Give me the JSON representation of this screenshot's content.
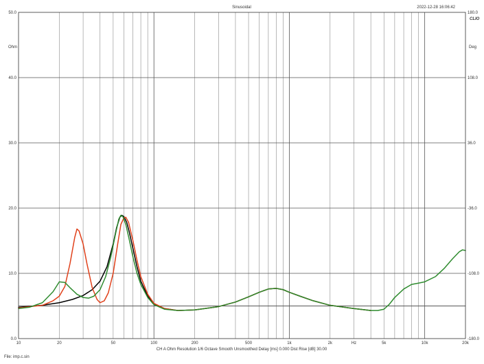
{
  "header": {
    "title": "Sinusoidal",
    "timestamp": "2022-12-28 16:06:42",
    "brand": "CLIO"
  },
  "footer": {
    "settings": "CH A   Ohm   Resolution 1/6 Octave   Smooth Unsmoothed   Delay [ms] 0.000   Dist Rise [dB] 30.00",
    "file": "File: imp.c.sin"
  },
  "chart_data": {
    "type": "line",
    "x_scale": "log",
    "xlim": [
      10,
      20000
    ],
    "ylim": [
      0,
      50
    ],
    "y2lim": [
      -180,
      180
    ],
    "grid": true,
    "ylabel": "Ohm",
    "y2label": "Deg",
    "x_ticks": [
      {
        "value": 10,
        "label": "10"
      },
      {
        "value": 20,
        "label": "20"
      },
      {
        "value": 50,
        "label": "50"
      },
      {
        "value": 100,
        "label": "100"
      },
      {
        "value": 200,
        "label": "200"
      },
      {
        "value": 500,
        "label": "500"
      },
      {
        "value": 1000,
        "label": "1k"
      },
      {
        "value": 2000,
        "label": "2k"
      },
      {
        "value": 3000,
        "label": "Hz"
      },
      {
        "value": 5000,
        "label": "5k"
      },
      {
        "value": 10000,
        "label": "10k"
      },
      {
        "value": 20000,
        "label": "20k"
      }
    ],
    "y_ticks": [
      {
        "value": 0,
        "label": "0.0"
      },
      {
        "value": 10,
        "label": "10.0"
      },
      {
        "value": 20,
        "label": "20.0"
      },
      {
        "value": 30,
        "label": "30.0"
      },
      {
        "value": 40,
        "label": "40.0"
      },
      {
        "value": 50,
        "label": "50.0"
      }
    ],
    "y2_ticks": [
      {
        "value": -180,
        "label": "-180.0"
      },
      {
        "value": -108,
        "label": "-108.0"
      },
      {
        "value": -36,
        "label": "-36.0"
      },
      {
        "value": 36,
        "label": "36.0"
      },
      {
        "value": 108,
        "label": "108.0"
      },
      {
        "value": 180,
        "label": "180.0"
      }
    ],
    "hlines": [
      {
        "y": 5.0,
        "color": "#555555"
      }
    ],
    "series": [
      {
        "color": "#000000",
        "points": [
          [
            10,
            4.8
          ],
          [
            15,
            5.1
          ],
          [
            20,
            5.5
          ],
          [
            25,
            6.0
          ],
          [
            30,
            6.6
          ],
          [
            35,
            7.5
          ],
          [
            40,
            8.8
          ],
          [
            45,
            11.0
          ],
          [
            50,
            14.5
          ],
          [
            53,
            17.0
          ],
          [
            56,
            18.6
          ],
          [
            58,
            18.9
          ],
          [
            60,
            18.7
          ],
          [
            63,
            17.8
          ],
          [
            66,
            16.2
          ],
          [
            70,
            13.8
          ],
          [
            75,
            11.0
          ],
          [
            80,
            8.8
          ],
          [
            90,
            6.5
          ],
          [
            100,
            5.3
          ],
          [
            120,
            4.6
          ],
          [
            150,
            4.3
          ],
          [
            200,
            4.4
          ],
          [
            300,
            4.9
          ],
          [
            400,
            5.6
          ],
          [
            500,
            6.4
          ],
          [
            600,
            7.1
          ],
          [
            700,
            7.6
          ],
          [
            800,
            7.7
          ],
          [
            900,
            7.5
          ],
          [
            1000,
            7.1
          ],
          [
            1200,
            6.5
          ],
          [
            1500,
            5.8
          ],
          [
            2000,
            5.1
          ],
          [
            3000,
            4.6
          ],
          [
            4000,
            4.3
          ]
        ]
      },
      {
        "color": "#e0401a",
        "points": [
          [
            10,
            4.7
          ],
          [
            15,
            5.1
          ],
          [
            18,
            5.8
          ],
          [
            20,
            6.5
          ],
          [
            22,
            8.0
          ],
          [
            24,
            11.5
          ],
          [
            26,
            15.5
          ],
          [
            27,
            16.8
          ],
          [
            28,
            16.5
          ],
          [
            30,
            14.5
          ],
          [
            32,
            11.5
          ],
          [
            35,
            7.8
          ],
          [
            38,
            6.0
          ],
          [
            40,
            5.5
          ],
          [
            43,
            5.8
          ],
          [
            46,
            7.0
          ],
          [
            50,
            10.0
          ],
          [
            54,
            14.5
          ],
          [
            57,
            17.5
          ],
          [
            60,
            18.5
          ],
          [
            62,
            18.6
          ],
          [
            65,
            17.8
          ],
          [
            70,
            15.0
          ],
          [
            75,
            12.0
          ],
          [
            80,
            9.5
          ],
          [
            90,
            6.8
          ],
          [
            100,
            5.4
          ],
          [
            120,
            4.6
          ],
          [
            150,
            4.3
          ],
          [
            200,
            4.4
          ],
          [
            300,
            4.9
          ],
          [
            400,
            5.6
          ],
          [
            500,
            6.4
          ],
          [
            600,
            7.1
          ],
          [
            700,
            7.6
          ],
          [
            800,
            7.7
          ],
          [
            900,
            7.5
          ],
          [
            1000,
            7.1
          ],
          [
            1200,
            6.5
          ],
          [
            1500,
            5.8
          ],
          [
            2000,
            5.1
          ],
          [
            3000,
            4.6
          ],
          [
            4000,
            4.3
          ]
        ]
      },
      {
        "color": "#2e8b2e",
        "points": [
          [
            10,
            4.6
          ],
          [
            12,
            4.8
          ],
          [
            15,
            5.5
          ],
          [
            18,
            7.2
          ],
          [
            20,
            8.7
          ],
          [
            22,
            8.6
          ],
          [
            24,
            7.8
          ],
          [
            27,
            6.8
          ],
          [
            30,
            6.3
          ],
          [
            33,
            6.2
          ],
          [
            36,
            6.5
          ],
          [
            40,
            7.5
          ],
          [
            44,
            9.5
          ],
          [
            48,
            12.5
          ],
          [
            52,
            16.0
          ],
          [
            55,
            18.3
          ],
          [
            57,
            18.9
          ],
          [
            59,
            18.7
          ],
          [
            62,
            17.5
          ],
          [
            66,
            15.0
          ],
          [
            70,
            12.5
          ],
          [
            75,
            10.0
          ],
          [
            80,
            8.3
          ],
          [
            90,
            6.3
          ],
          [
            100,
            5.2
          ],
          [
            120,
            4.5
          ],
          [
            150,
            4.3
          ],
          [
            200,
            4.4
          ],
          [
            300,
            4.9
          ],
          [
            400,
            5.6
          ],
          [
            500,
            6.4
          ],
          [
            600,
            7.1
          ],
          [
            700,
            7.6
          ],
          [
            800,
            7.7
          ],
          [
            900,
            7.5
          ],
          [
            1000,
            7.1
          ],
          [
            1200,
            6.5
          ],
          [
            1500,
            5.8
          ],
          [
            2000,
            5.1
          ],
          [
            3000,
            4.6
          ],
          [
            4000,
            4.3
          ],
          [
            4500,
            4.3
          ],
          [
            5000,
            4.5
          ],
          [
            5500,
            5.3
          ],
          [
            6000,
            6.3
          ],
          [
            7000,
            7.6
          ],
          [
            8000,
            8.3
          ],
          [
            9000,
            8.5
          ],
          [
            10000,
            8.7
          ],
          [
            12000,
            9.5
          ],
          [
            14000,
            10.8
          ],
          [
            16000,
            12.2
          ],
          [
            18000,
            13.3
          ],
          [
            19000,
            13.6
          ],
          [
            20000,
            13.5
          ]
        ]
      }
    ]
  }
}
